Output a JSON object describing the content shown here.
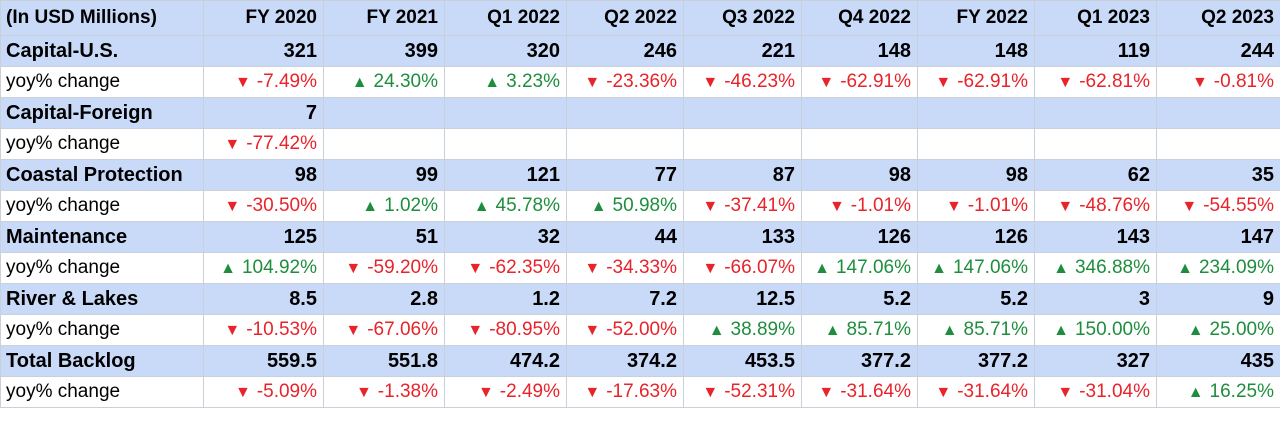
{
  "colors": {
    "header_bg": "#c9daf8",
    "up": "#1e8e3e",
    "down": "#e8232a",
    "grid": "#c9d0da"
  },
  "header": {
    "label": "(In USD Millions)",
    "periods": [
      "FY 2020",
      "FY 2021",
      "Q1 2022",
      "Q2 2022",
      "Q3 2022",
      "Q4 2022",
      "FY 2022",
      "Q1 2023",
      "Q2 2023"
    ]
  },
  "yoy_label": "yoy% change",
  "rows": [
    {
      "name": "Capital-U.S.",
      "values": [
        "321",
        "399",
        "320",
        "246",
        "221",
        "148",
        "148",
        "119",
        "244"
      ],
      "yoy": [
        {
          "dir": "down",
          "text": "-7.49%"
        },
        {
          "dir": "up",
          "text": "24.30%"
        },
        {
          "dir": "up",
          "text": "3.23%"
        },
        {
          "dir": "down",
          "text": "-23.36%"
        },
        {
          "dir": "down",
          "text": "-46.23%"
        },
        {
          "dir": "down",
          "text": "-62.91%"
        },
        {
          "dir": "down",
          "text": "-62.91%"
        },
        {
          "dir": "down",
          "text": "-62.81%"
        },
        {
          "dir": "down",
          "text": "-0.81%"
        }
      ]
    },
    {
      "name": "Capital-Foreign",
      "values": [
        "7",
        "",
        "",
        "",
        "",
        "",
        "",
        "",
        ""
      ],
      "yoy": [
        {
          "dir": "down",
          "text": "-77.42%"
        },
        {
          "dir": "",
          "text": ""
        },
        {
          "dir": "",
          "text": ""
        },
        {
          "dir": "",
          "text": ""
        },
        {
          "dir": "",
          "text": ""
        },
        {
          "dir": "",
          "text": ""
        },
        {
          "dir": "",
          "text": ""
        },
        {
          "dir": "",
          "text": ""
        },
        {
          "dir": "",
          "text": ""
        }
      ]
    },
    {
      "name": "Coastal Protection",
      "values": [
        "98",
        "99",
        "121",
        "77",
        "87",
        "98",
        "98",
        "62",
        "35"
      ],
      "yoy": [
        {
          "dir": "down",
          "text": "-30.50%"
        },
        {
          "dir": "up",
          "text": "1.02%"
        },
        {
          "dir": "up",
          "text": "45.78%"
        },
        {
          "dir": "up",
          "text": "50.98%"
        },
        {
          "dir": "down",
          "text": "-37.41%"
        },
        {
          "dir": "down",
          "text": "-1.01%"
        },
        {
          "dir": "down",
          "text": "-1.01%"
        },
        {
          "dir": "down",
          "text": "-48.76%"
        },
        {
          "dir": "down",
          "text": "-54.55%"
        }
      ]
    },
    {
      "name": "Maintenance",
      "values": [
        "125",
        "51",
        "32",
        "44",
        "133",
        "126",
        "126",
        "143",
        "147"
      ],
      "yoy": [
        {
          "dir": "up",
          "text": "104.92%"
        },
        {
          "dir": "down",
          "text": "-59.20%"
        },
        {
          "dir": "down",
          "text": "-62.35%"
        },
        {
          "dir": "down",
          "text": "-34.33%"
        },
        {
          "dir": "down",
          "text": "-66.07%"
        },
        {
          "dir": "up",
          "text": "147.06%"
        },
        {
          "dir": "up",
          "text": "147.06%"
        },
        {
          "dir": "up",
          "text": "346.88%"
        },
        {
          "dir": "up",
          "text": "234.09%"
        }
      ]
    },
    {
      "name": "River & Lakes",
      "values": [
        "8.5",
        "2.8",
        "1.2",
        "7.2",
        "12.5",
        "5.2",
        "5.2",
        "3",
        "9"
      ],
      "yoy": [
        {
          "dir": "down",
          "text": "-10.53%"
        },
        {
          "dir": "down",
          "text": "-67.06%"
        },
        {
          "dir": "down",
          "text": "-80.95%"
        },
        {
          "dir": "down",
          "text": "-52.00%"
        },
        {
          "dir": "up",
          "text": "38.89%"
        },
        {
          "dir": "up",
          "text": "85.71%"
        },
        {
          "dir": "up",
          "text": "85.71%"
        },
        {
          "dir": "up",
          "text": "150.00%"
        },
        {
          "dir": "up",
          "text": "25.00%"
        }
      ]
    },
    {
      "name": "Total Backlog",
      "values": [
        "559.5",
        "551.8",
        "474.2",
        "374.2",
        "453.5",
        "377.2",
        "377.2",
        "327",
        "435"
      ],
      "yoy": [
        {
          "dir": "down",
          "text": "-5.09%"
        },
        {
          "dir": "down",
          "text": "-1.38%"
        },
        {
          "dir": "down",
          "text": "-2.49%"
        },
        {
          "dir": "down",
          "text": "-17.63%"
        },
        {
          "dir": "down",
          "text": "-52.31%"
        },
        {
          "dir": "down",
          "text": "-31.64%"
        },
        {
          "dir": "down",
          "text": "-31.64%"
        },
        {
          "dir": "down",
          "text": "-31.04%"
        },
        {
          "dir": "up",
          "text": "16.25%"
        }
      ]
    }
  ]
}
